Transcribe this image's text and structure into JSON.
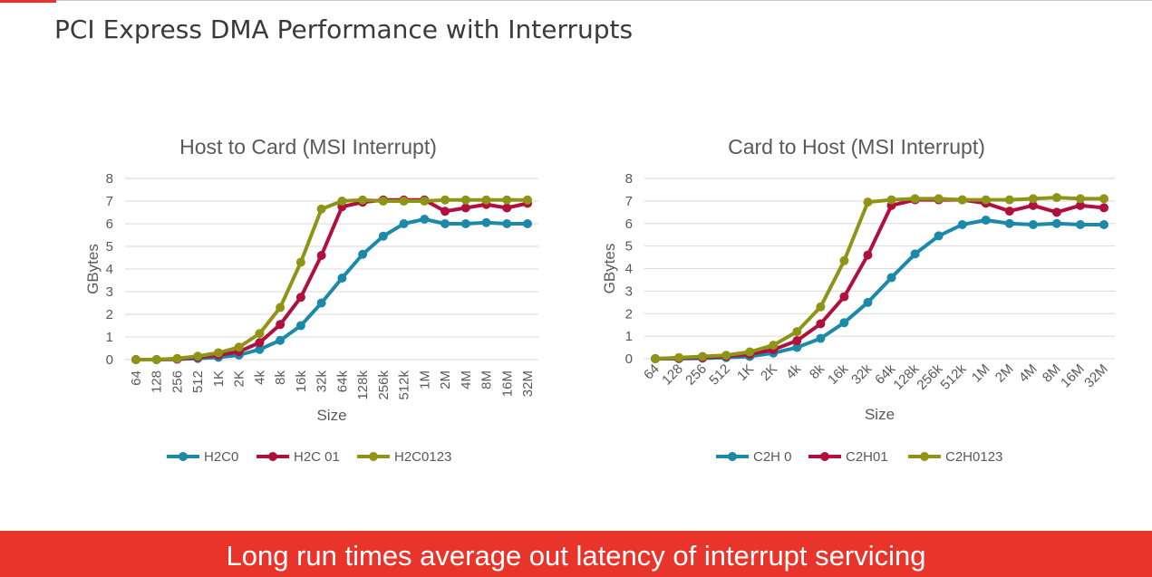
{
  "slide": {
    "title": "PCI Express DMA Performance with Interrupts",
    "footer": "Long run times average out latency of interrupt servicing"
  },
  "colors": {
    "accent": "#e8342a",
    "series_teal": "#1a8aa8",
    "series_crimson": "#b0103e",
    "series_olive": "#8e9415"
  },
  "chart_data": [
    {
      "type": "line",
      "title": "Host to Card (MSI Interrupt)",
      "xlabel": "Size",
      "ylabel": "GBytes",
      "ylim": [
        0,
        8
      ],
      "yticks": [
        "0",
        "1",
        "2",
        "3",
        "4",
        "5",
        "6",
        "7",
        "8"
      ],
      "categories": [
        "64",
        "128",
        "256",
        "512",
        "1K",
        "2K",
        "4k",
        "8k",
        "16k",
        "32k",
        "64k",
        "128k",
        "256k",
        "512k",
        "1M",
        "2M",
        "4M",
        "8M",
        "16M",
        "32M"
      ],
      "legend_position": "bottom",
      "series": [
        {
          "name": "H2C0",
          "color": "#1a8aa8",
          "values": [
            0,
            0,
            0.02,
            0.05,
            0.1,
            0.2,
            0.45,
            0.85,
            1.5,
            2.5,
            3.6,
            4.65,
            5.45,
            6.0,
            6.2,
            6.0,
            6.0,
            6.05,
            6.0,
            6.0
          ]
        },
        {
          "name": "H2C 01",
          "color": "#b0103e",
          "values": [
            0,
            0,
            0.02,
            0.1,
            0.2,
            0.35,
            0.75,
            1.55,
            2.75,
            4.6,
            6.75,
            6.95,
            7.05,
            7.05,
            7.05,
            6.55,
            6.7,
            6.85,
            6.7,
            6.9
          ]
        },
        {
          "name": "H2C0123",
          "color": "#8e9415",
          "values": [
            0,
            0,
            0.05,
            0.15,
            0.3,
            0.55,
            1.15,
            2.3,
            4.3,
            6.65,
            7.0,
            7.05,
            7.0,
            7.0,
            7.0,
            7.05,
            7.05,
            7.05,
            7.05,
            7.05
          ]
        }
      ]
    },
    {
      "type": "line",
      "title": "Card to Host (MSI Interrupt)",
      "xlabel": "Size",
      "ylabel": "GBytes",
      "ylim": [
        0,
        8
      ],
      "yticks": [
        "0",
        "1",
        "2",
        "3",
        "4",
        "5",
        "6",
        "7",
        "8"
      ],
      "categories": [
        "64",
        "128",
        "256",
        "512",
        "1K",
        "2K",
        "4k",
        "8k",
        "16k",
        "32k",
        "64k",
        "128k",
        "256k",
        "512k",
        "1M",
        "2M",
        "4M",
        "8M",
        "16M",
        "32M"
      ],
      "legend_position": "bottom",
      "series": [
        {
          "name": "C2H 0",
          "color": "#1a8aa8",
          "values": [
            0,
            0,
            0.02,
            0.05,
            0.1,
            0.25,
            0.5,
            0.9,
            1.6,
            2.5,
            3.6,
            4.65,
            5.45,
            5.95,
            6.15,
            6.0,
            5.95,
            6.0,
            5.95,
            5.95
          ]
        },
        {
          "name": "C2H01",
          "color": "#b0103e",
          "values": [
            0,
            0.02,
            0.05,
            0.1,
            0.2,
            0.4,
            0.8,
            1.55,
            2.75,
            4.6,
            6.8,
            7.05,
            7.05,
            7.05,
            6.9,
            6.55,
            6.8,
            6.5,
            6.8,
            6.7
          ]
        },
        {
          "name": "C2H0123",
          "color": "#8e9415",
          "values": [
            0,
            0.05,
            0.1,
            0.15,
            0.3,
            0.6,
            1.2,
            2.3,
            4.35,
            6.95,
            7.05,
            7.1,
            7.1,
            7.05,
            7.05,
            7.05,
            7.1,
            7.15,
            7.1,
            7.1
          ]
        }
      ]
    }
  ]
}
